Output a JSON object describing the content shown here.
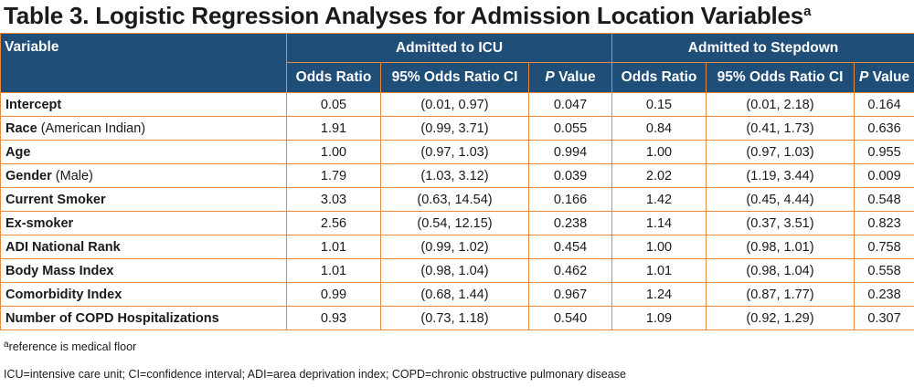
{
  "title": {
    "text": "Table 3. Logistic Regression Analyses for Admission Location Variables",
    "superscript": "a"
  },
  "header": {
    "variable": "Variable",
    "group_icu": "Admitted to ICU",
    "group_stepdown": "Admitted to Stepdown",
    "odds_ratio": "Odds Ratio",
    "ci": "95% Odds Ratio CI",
    "p_italic": "P",
    "p_rest": " Value"
  },
  "rows": [
    {
      "name": "Intercept",
      "qualifier": "",
      "icu_or": "0.05",
      "icu_ci": "(0.01, 0.97)",
      "icu_p": "0.047",
      "sd_or": "0.15",
      "sd_ci": "(0.01, 2.18)",
      "sd_p": "0.164"
    },
    {
      "name": "Race",
      "qualifier": " (American Indian)",
      "icu_or": "1.91",
      "icu_ci": "(0.99, 3.71)",
      "icu_p": "0.055",
      "sd_or": "0.84",
      "sd_ci": "(0.41, 1.73)",
      "sd_p": "0.636"
    },
    {
      "name": "Age",
      "qualifier": "",
      "icu_or": "1.00",
      "icu_ci": "(0.97, 1.03)",
      "icu_p": "0.994",
      "sd_or": "1.00",
      "sd_ci": "(0.97, 1.03)",
      "sd_p": "0.955"
    },
    {
      "name": "Gender",
      "qualifier": " (Male)",
      "icu_or": "1.79",
      "icu_ci": "(1.03, 3.12)",
      "icu_p": "0.039",
      "sd_or": "2.02",
      "sd_ci": "(1.19, 3.44)",
      "sd_p": "0.009"
    },
    {
      "name": "Current Smoker",
      "qualifier": "",
      "icu_or": "3.03",
      "icu_ci": "(0.63, 14.54)",
      "icu_p": "0.166",
      "sd_or": "1.42",
      "sd_ci": "(0.45, 4.44)",
      "sd_p": "0.548"
    },
    {
      "name": "Ex-smoker",
      "qualifier": "",
      "icu_or": "2.56",
      "icu_ci": "(0.54, 12.15)",
      "icu_p": "0.238",
      "sd_or": "1.14",
      "sd_ci": "(0.37, 3.51)",
      "sd_p": "0.823"
    },
    {
      "name": "ADI National Rank",
      "qualifier": "",
      "icu_or": "1.01",
      "icu_ci": "(0.99, 1.02)",
      "icu_p": "0.454",
      "sd_or": "1.00",
      "sd_ci": "(0.98, 1.01)",
      "sd_p": "0.758"
    },
    {
      "name": "Body Mass Index",
      "qualifier": "",
      "icu_or": "1.01",
      "icu_ci": "(0.98, 1.04)",
      "icu_p": "0.462",
      "sd_or": "1.01",
      "sd_ci": "(0.98, 1.04)",
      "sd_p": "0.558"
    },
    {
      "name": "Comorbidity Index",
      "qualifier": "",
      "icu_or": "0.99",
      "icu_ci": "(0.68, 1.44)",
      "icu_p": "0.967",
      "sd_or": "1.24",
      "sd_ci": "(0.87, 1.77)",
      "sd_p": "0.238"
    },
    {
      "name": "Number of COPD Hospitalizations",
      "qualifier": "",
      "icu_or": "0.93",
      "icu_ci": "(0.73, 1.18)",
      "icu_p": "0.540",
      "sd_or": "1.09",
      "sd_ci": "(0.92, 1.29)",
      "sd_p": "0.307"
    }
  ],
  "footnotes": {
    "note_a_marker": "a",
    "note_a_text": "reference is medical floor",
    "abbreviations": "ICU=intensive care unit; CI=confidence interval; ADI=area deprivation index; COPD=chronic obstructive pulmonary disease"
  },
  "colors": {
    "header_bg": "#1f4e79",
    "header_text": "#ffffff",
    "border": "#e88a3a"
  }
}
